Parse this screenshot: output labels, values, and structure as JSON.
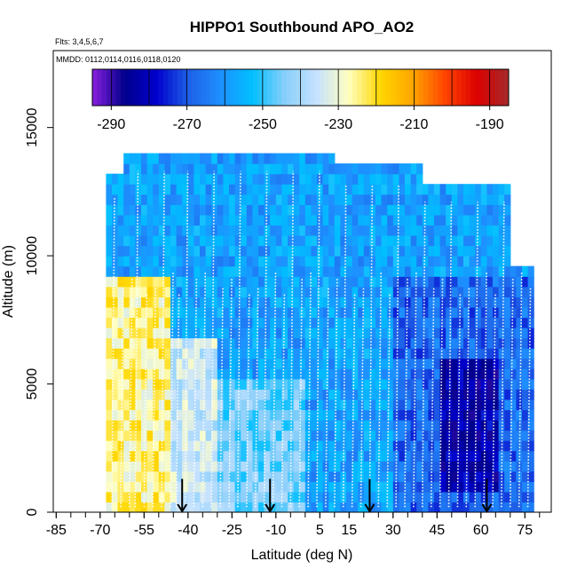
{
  "chart_data": {
    "type": "heatmap",
    "title": "HIPPO1 Southbound APO_AO2",
    "annotations": [
      "Flts: 3,4,5,6,7",
      "MMDD: 0112,0114,0116,0118,0120"
    ],
    "xlabel": "Latitude (deg N)",
    "ylabel": "Altitude (m)",
    "xlim": [
      -86,
      84
    ],
    "ylim": [
      0,
      18000
    ],
    "x_ticks": [
      -85,
      -70,
      -55,
      -40,
      -25,
      -10,
      5,
      15,
      30,
      45,
      60,
      75
    ],
    "y_ticks": [
      0,
      5000,
      10000,
      15000
    ],
    "colorbar": {
      "range": [
        -295,
        -185
      ],
      "ticks": [
        -290,
        -270,
        -250,
        -230,
        -210,
        -190
      ],
      "colors": [
        "#8b1fe0",
        "#00008b",
        "#0000cd",
        "#1e5fe6",
        "#1e90ff",
        "#00bfff",
        "#87cefa",
        "#c6e2ff",
        "#ffffc0",
        "#ffd700",
        "#ffa500",
        "#ff4500",
        "#dc0000",
        "#a52a2a"
      ]
    },
    "vertical_profiles_latitudes": [
      -66,
      -63,
      -60,
      -58,
      -55,
      -52,
      -49,
      -46,
      -44,
      -41,
      -38,
      -35,
      -32,
      -29,
      -26,
      -23,
      -20,
      -17,
      -14,
      -11,
      -8,
      -5,
      -2,
      1,
      4,
      7,
      10,
      13,
      16,
      19,
      22,
      25,
      28,
      31,
      34,
      37,
      40,
      43,
      46,
      49,
      52,
      55,
      58,
      61,
      64,
      67,
      70,
      73,
      76
    ],
    "arrow_latitudes": [
      -42,
      -12,
      22,
      62
    ],
    "regions": [
      {
        "lat": [
          -68,
          -46
        ],
        "alt": [
          0,
          9000
        ],
        "value": -225
      },
      {
        "lat": [
          -46,
          -30
        ],
        "alt": [
          0,
          6500
        ],
        "value": -235
      },
      {
        "lat": [
          -30,
          0
        ],
        "alt": [
          0,
          5000
        ],
        "value": -245
      },
      {
        "lat": [
          0,
          30
        ],
        "alt": [
          0,
          9000
        ],
        "value": -258
      },
      {
        "lat": [
          30,
          78
        ],
        "alt": [
          0,
          9000
        ],
        "value": -268
      },
      {
        "lat": [
          45,
          65
        ],
        "alt": [
          500,
          6000
        ],
        "value": -282
      },
      {
        "lat": [
          -68,
          78
        ],
        "alt": [
          9000,
          14000
        ],
        "value": -258
      }
    ]
  }
}
